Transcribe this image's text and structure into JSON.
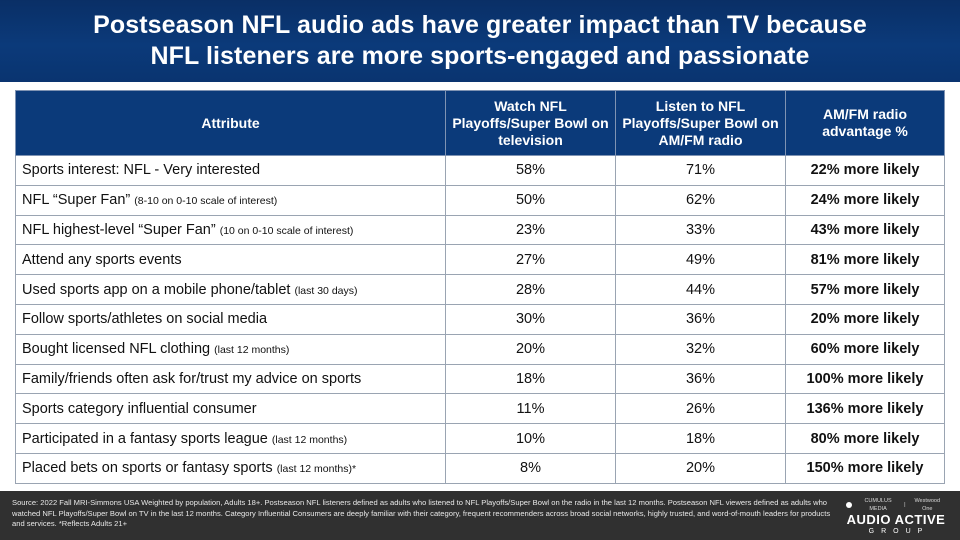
{
  "title": {
    "line1": "Postseason NFL audio ads have greater impact than TV because",
    "line2": "NFL listeners are more sports-engaged and passionate"
  },
  "table": {
    "headers": {
      "attribute": "Attribute",
      "tv": "Watch NFL Playoffs/Super Bowl on television",
      "radio": "Listen to NFL Playoffs/Super Bowl on AM/FM radio",
      "advantage": "AM/FM radio advantage %"
    },
    "rows": [
      {
        "attribute": "Sports interest: NFL - Very interested",
        "note": "",
        "tv": "58%",
        "radio": "71%",
        "advantage": "22% more likely"
      },
      {
        "attribute": "NFL “Super Fan” ",
        "note": "(8-10 on 0-10 scale of interest)",
        "tv": "50%",
        "radio": "62%",
        "advantage": "24% more likely"
      },
      {
        "attribute": "NFL highest-level “Super Fan” ",
        "note": "(10 on 0-10 scale of interest)",
        "tv": "23%",
        "radio": "33%",
        "advantage": "43% more likely"
      },
      {
        "attribute": "Attend any sports events",
        "note": "",
        "tv": "27%",
        "radio": "49%",
        "advantage": "81% more likely"
      },
      {
        "attribute": "Used sports app on a mobile phone/tablet ",
        "note": "(last 30 days)",
        "tv": "28%",
        "radio": "44%",
        "advantage": "57% more likely"
      },
      {
        "attribute": "Follow sports/athletes on social media",
        "note": "",
        "tv": "30%",
        "radio": "36%",
        "advantage": "20% more likely"
      },
      {
        "attribute": "Bought licensed NFL clothing ",
        "note": "(last 12 months)",
        "tv": "20%",
        "radio": "32%",
        "advantage": "60% more likely"
      },
      {
        "attribute": "Family/friends often ask for/trust my advice on sports",
        "note": "",
        "tv": "18%",
        "radio": "36%",
        "advantage": "100% more likely"
      },
      {
        "attribute": "Sports category influential consumer",
        "note": "",
        "tv": "11%",
        "radio": "26%",
        "advantage": "136% more likely"
      },
      {
        "attribute": "Participated in a fantasy sports league ",
        "note": "(last 12 months)",
        "tv": "10%",
        "radio": "18%",
        "advantage": "80% more likely"
      },
      {
        "attribute": "Placed bets on sports or fantasy sports ",
        "note": "(last 12 months)*",
        "tv": "8%",
        "radio": "20%",
        "advantage": "150% more likely"
      }
    ]
  },
  "footer": {
    "source": "Source:  2022 Fall MRI-Simmons  USA Weighted by population, Adults 18+. Postseason NFL listeners defined  as adults who listened to NFL Playoffs/Super Bowl on the radio in the last 12 months. Postseason NFL viewers defined as adults who watched NFL Playoffs/Super Bowl on TV in the last 12 months. Category Influential Consumers  are deeply familiar with their category, frequent recommenders  across broad social networks, highly trusted, and word-of-mouth leaders for products and services.  *Reflects Adults 21+",
    "logo": {
      "brand_left": "CUMULUS MEDIA",
      "brand_right": "Westwood One",
      "main": "AUDIO ACTIVE",
      "sub": "GROUP"
    }
  },
  "colors": {
    "title_bg": "#0b3a7a",
    "header_bg": "#0b3a7a",
    "footer_bg": "#303030",
    "text": "#111111"
  }
}
